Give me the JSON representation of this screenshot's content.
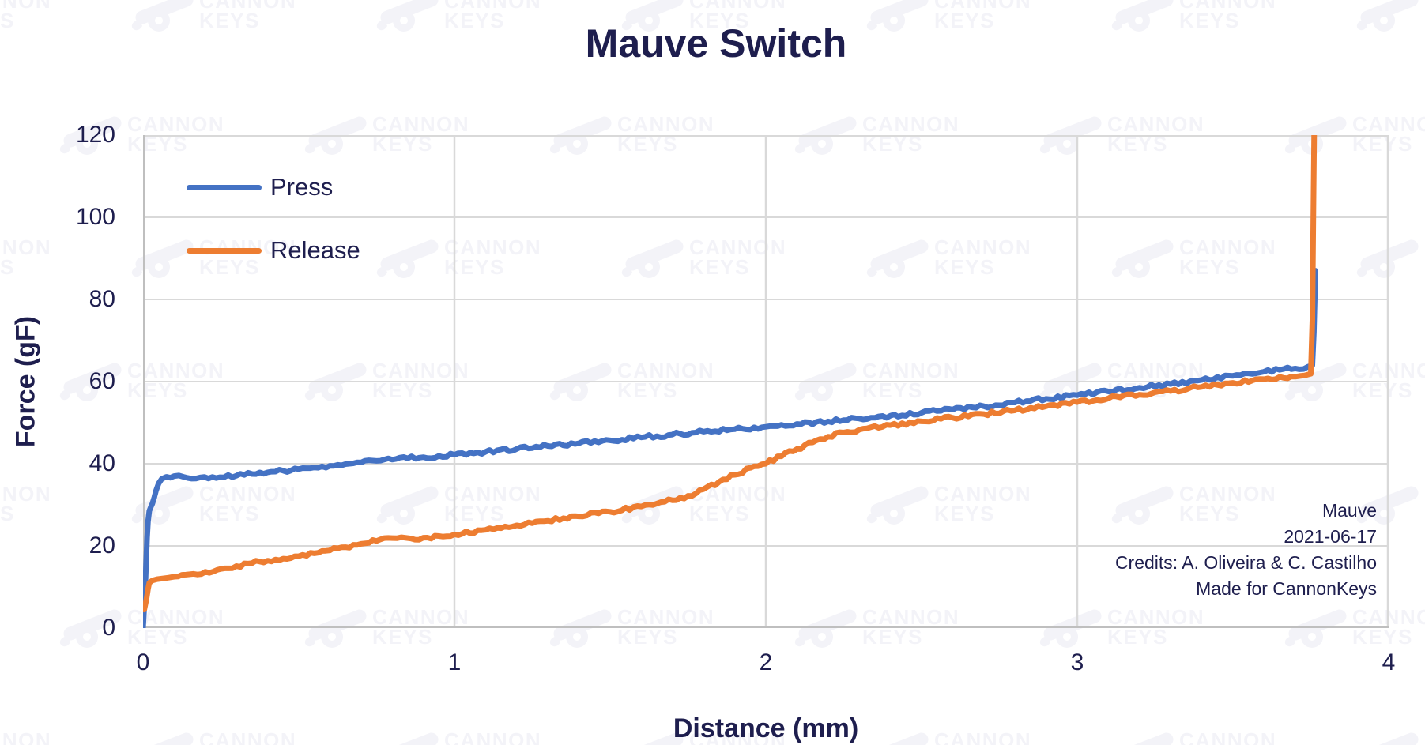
{
  "title": "Mauve Switch",
  "y_axis": {
    "title": "Force (gF)"
  },
  "x_axis": {
    "title": "Distance (mm)"
  },
  "legend": [
    {
      "label": "Press",
      "color": "#4472c4"
    },
    {
      "label": "Release",
      "color": "#ed7d31"
    }
  ],
  "annotation": {
    "line1": "Mauve",
    "line2": "2021-06-17",
    "line3": "Credits: A. Oliveira & C. Castilho",
    "line4": "Made for CannonKeys"
  },
  "watermark": {
    "line1": "CANNON",
    "line2": "KEYS",
    "color": "#f3f3f8"
  },
  "colors": {
    "text_navy": "#1e1e4e",
    "grid": "#d9d9d9",
    "axis_line": "#bfbfbf",
    "press": "#4472c4",
    "release": "#ed7d31",
    "background": "#ffffff"
  },
  "chart_data": {
    "type": "line",
    "title": "Mauve Switch",
    "xlabel": "Distance (mm)",
    "ylabel": "Force (gF)",
    "xlim": [
      0,
      4
    ],
    "ylim": [
      0,
      120
    ],
    "x_ticks": [
      0,
      1,
      2,
      3,
      4
    ],
    "y_ticks": [
      0,
      20,
      40,
      60,
      80,
      100,
      120
    ],
    "grid": true,
    "legend_position": "top-left-inside",
    "series": [
      {
        "name": "Press",
        "color": "#4472c4",
        "points": [
          [
            0.0,
            0.0
          ],
          [
            0.006,
            8.0
          ],
          [
            0.01,
            16.0
          ],
          [
            0.013,
            22.0
          ],
          [
            0.016,
            26.0
          ],
          [
            0.02,
            28.5
          ],
          [
            0.025,
            29.5
          ],
          [
            0.03,
            30.3
          ],
          [
            0.036,
            31.8
          ],
          [
            0.042,
            33.5
          ],
          [
            0.05,
            35.2
          ],
          [
            0.06,
            36.3
          ],
          [
            0.075,
            36.8
          ],
          [
            0.1,
            37.0
          ],
          [
            0.13,
            36.8
          ],
          [
            0.17,
            36.4
          ],
          [
            0.21,
            36.4
          ],
          [
            0.26,
            36.7
          ],
          [
            0.3,
            37.1
          ],
          [
            0.35,
            37.5
          ],
          [
            0.4,
            37.9
          ],
          [
            0.45,
            38.3
          ],
          [
            0.5,
            38.7
          ],
          [
            0.55,
            39.1
          ],
          [
            0.6,
            39.5
          ],
          [
            0.65,
            39.9
          ],
          [
            0.7,
            40.3
          ],
          [
            0.75,
            40.7
          ],
          [
            0.8,
            41.0
          ],
          [
            0.85,
            41.3
          ],
          [
            0.9,
            41.6
          ],
          [
            0.95,
            41.9
          ],
          [
            1.0,
            42.2
          ],
          [
            1.1,
            42.9
          ],
          [
            1.2,
            43.6
          ],
          [
            1.3,
            44.3
          ],
          [
            1.4,
            45.0
          ],
          [
            1.5,
            45.7
          ],
          [
            1.6,
            46.4
          ],
          [
            1.7,
            47.1
          ],
          [
            1.8,
            47.8
          ],
          [
            1.9,
            48.4
          ],
          [
            2.0,
            49.0
          ],
          [
            2.1,
            49.7
          ],
          [
            2.2,
            50.3
          ],
          [
            2.3,
            51.0
          ],
          [
            2.4,
            51.7
          ],
          [
            2.5,
            52.4
          ],
          [
            2.6,
            53.2
          ],
          [
            2.7,
            54.0
          ],
          [
            2.8,
            54.9
          ],
          [
            2.9,
            55.8
          ],
          [
            3.0,
            56.7
          ],
          [
            3.1,
            57.6
          ],
          [
            3.2,
            58.5
          ],
          [
            3.3,
            59.4
          ],
          [
            3.4,
            60.4
          ],
          [
            3.5,
            61.4
          ],
          [
            3.6,
            62.4
          ],
          [
            3.7,
            63.2
          ],
          [
            3.74,
            63.6
          ],
          [
            3.755,
            64.0
          ],
          [
            3.76,
            72.0
          ],
          [
            3.765,
            87.0
          ]
        ]
      },
      {
        "name": "Release",
        "color": "#ed7d31",
        "points": [
          [
            0.004,
            4.5
          ],
          [
            0.008,
            6.0
          ],
          [
            0.012,
            7.5
          ],
          [
            0.016,
            9.5
          ],
          [
            0.02,
            11.0
          ],
          [
            0.03,
            11.6
          ],
          [
            0.045,
            11.9
          ],
          [
            0.065,
            12.1
          ],
          [
            0.1,
            12.5
          ],
          [
            0.15,
            13.1
          ],
          [
            0.2,
            13.7
          ],
          [
            0.25,
            14.4
          ],
          [
            0.3,
            15.1
          ],
          [
            0.35,
            15.8
          ],
          [
            0.4,
            16.4
          ],
          [
            0.45,
            16.9
          ],
          [
            0.5,
            17.5
          ],
          [
            0.55,
            18.2
          ],
          [
            0.6,
            18.9
          ],
          [
            0.65,
            19.7
          ],
          [
            0.7,
            20.5
          ],
          [
            0.75,
            21.2
          ],
          [
            0.8,
            21.9
          ],
          [
            0.83,
            22.1
          ],
          [
            0.86,
            21.8
          ],
          [
            0.9,
            22.0
          ],
          [
            0.95,
            22.4
          ],
          [
            1.0,
            22.8
          ],
          [
            1.1,
            23.9
          ],
          [
            1.2,
            25.0
          ],
          [
            1.3,
            26.1
          ],
          [
            1.4,
            27.2
          ],
          [
            1.5,
            28.3
          ],
          [
            1.6,
            29.6
          ],
          [
            1.65,
            30.3
          ],
          [
            1.7,
            31.1
          ],
          [
            1.75,
            32.2
          ],
          [
            1.8,
            33.8
          ],
          [
            1.85,
            35.6
          ],
          [
            1.9,
            37.3
          ],
          [
            1.95,
            39.0
          ],
          [
            2.0,
            40.0
          ],
          [
            2.05,
            41.8
          ],
          [
            2.1,
            43.6
          ],
          [
            2.15,
            45.2
          ],
          [
            2.2,
            46.6
          ],
          [
            2.25,
            47.6
          ],
          [
            2.3,
            48.3
          ],
          [
            2.4,
            49.4
          ],
          [
            2.5,
            50.3
          ],
          [
            2.6,
            51.2
          ],
          [
            2.7,
            52.1
          ],
          [
            2.8,
            53.0
          ],
          [
            2.9,
            54.0
          ],
          [
            3.0,
            55.0
          ],
          [
            3.1,
            55.9
          ],
          [
            3.2,
            56.8
          ],
          [
            3.3,
            57.7
          ],
          [
            3.4,
            58.7
          ],
          [
            3.5,
            59.7
          ],
          [
            3.6,
            60.6
          ],
          [
            3.7,
            61.2
          ],
          [
            3.73,
            61.5
          ],
          [
            3.75,
            61.9
          ],
          [
            3.755,
            75.0
          ],
          [
            3.758,
            100.0
          ],
          [
            3.761,
            121.0
          ]
        ]
      }
    ]
  }
}
